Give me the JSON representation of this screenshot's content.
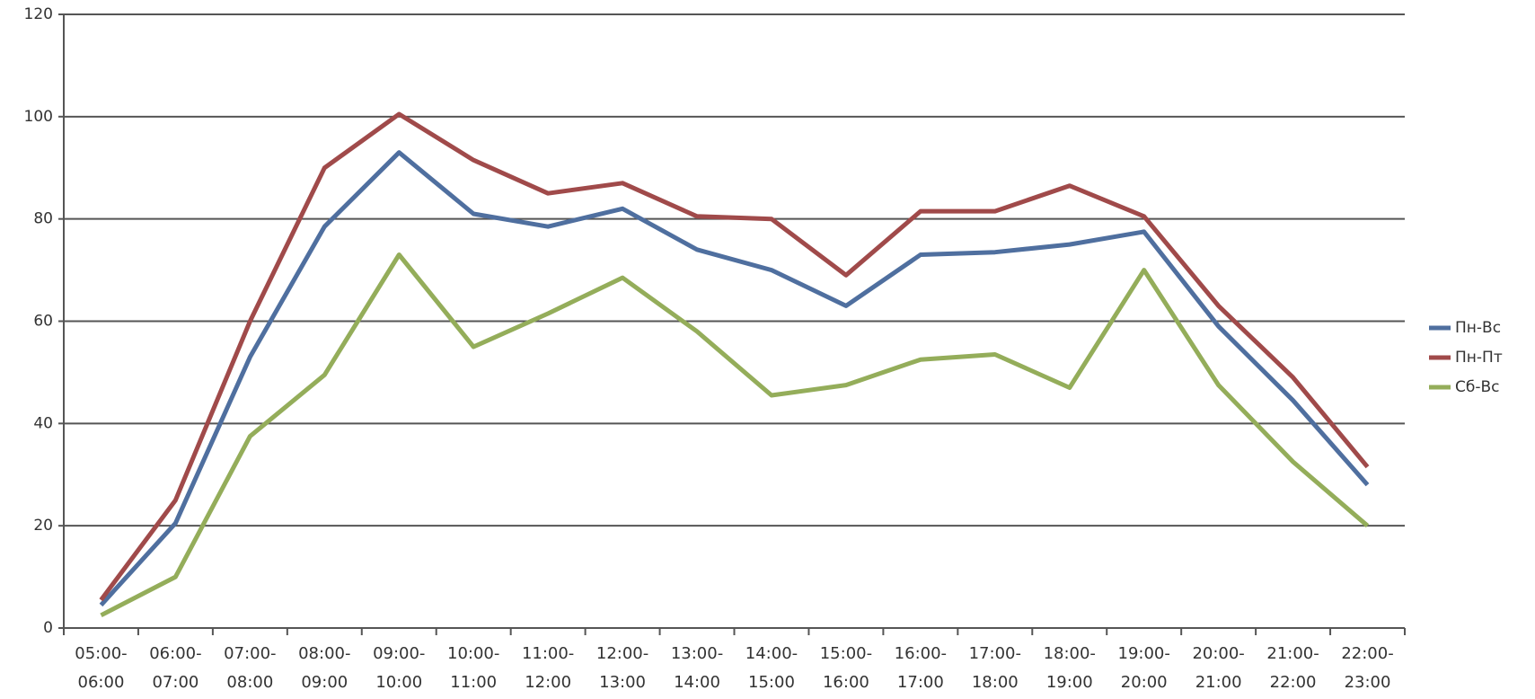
{
  "chart_data": {
    "type": "line",
    "categories": [
      "05:00-\n06:00",
      "06:00-\n07:00",
      "07:00-\n08:00",
      "08:00-\n09:00",
      "09:00-\n10:00",
      "10:00-\n11:00",
      "11:00-\n12:00",
      "12:00-\n13:00",
      "13:00-\n14:00",
      "14:00-\n15:00",
      "15:00-\n16:00",
      "16:00-\n17:00",
      "17:00-\n18:00",
      "18:00-\n19:00",
      "19:00-\n20:00",
      "20:00-\n21:00",
      "21:00-\n22:00",
      "22:00-\n23:00"
    ],
    "series": [
      {
        "name": "Пн-Вс",
        "color": "#4f6f9f",
        "values": [
          4.5,
          20.5,
          53,
          78.5,
          93,
          81,
          78.5,
          82,
          74,
          70,
          63,
          73,
          73.5,
          75,
          77.5,
          59,
          44.5,
          28
        ]
      },
      {
        "name": "Пн-Пт",
        "color": "#a04a4a",
        "values": [
          5.5,
          25,
          60,
          90,
          100.5,
          91.5,
          85,
          87,
          80.5,
          80,
          69,
          81.5,
          81.5,
          86.5,
          80.5,
          63,
          49,
          31.5
        ]
      },
      {
        "name": "Сб-Вс",
        "color": "#94ad5a",
        "values": [
          2.5,
          10,
          37.5,
          49.5,
          73,
          55,
          61.5,
          68.5,
          58,
          45.5,
          47.5,
          52.5,
          53.5,
          47,
          70,
          47.5,
          32.5,
          20
        ]
      }
    ],
    "ylim": [
      0,
      120
    ],
    "yticks": [
      0,
      20,
      40,
      60,
      80,
      100,
      120
    ],
    "grid": true,
    "legend": "right"
  }
}
